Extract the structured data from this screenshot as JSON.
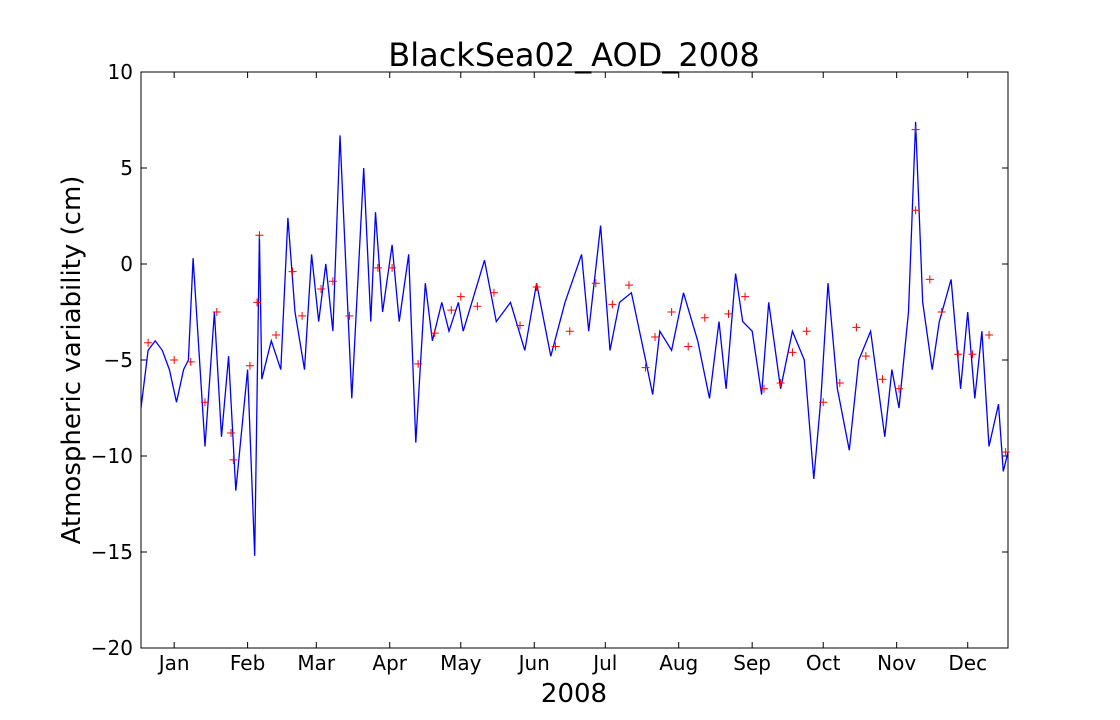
{
  "chart_data": {
    "type": "line",
    "title": "BlackSea02_AOD_2008",
    "x_label": "2008",
    "y_label": "Atmospheric variability (cm)",
    "xlim": [
      0,
      366
    ],
    "xticks": [
      {
        "value": 14,
        "label": "Jan"
      },
      {
        "value": 45,
        "label": "Feb"
      },
      {
        "value": 74,
        "label": "Mar"
      },
      {
        "value": 105,
        "label": "Apr"
      },
      {
        "value": 135,
        "label": "May"
      },
      {
        "value": 166,
        "label": "Jun"
      },
      {
        "value": 196,
        "label": "Jul"
      },
      {
        "value": 227,
        "label": "Aug"
      },
      {
        "value": 258,
        "label": "Sep"
      },
      {
        "value": 288,
        "label": "Oct"
      },
      {
        "value": 319,
        "label": "Nov"
      },
      {
        "value": 349,
        "label": "Dec"
      }
    ],
    "ylim": [
      -20,
      10
    ],
    "yticks": [
      {
        "value": -20,
        "label": "−20"
      },
      {
        "value": -15,
        "label": "−15"
      },
      {
        "value": -10,
        "label": "−10"
      },
      {
        "value": -5,
        "label": "−5"
      },
      0,
      5,
      10
    ],
    "series": [
      {
        "color": "#0000ff",
        "style": "line",
        "x": [
          0,
          3,
          6,
          9,
          12,
          15,
          18,
          20,
          22,
          27,
          31,
          34,
          37,
          40,
          45,
          48,
          50,
          51,
          55,
          59,
          62,
          65,
          69,
          72,
          75,
          78,
          81,
          84,
          89,
          94,
          97,
          99,
          102,
          106,
          109,
          113,
          116,
          120,
          123,
          127,
          130,
          134,
          136,
          145,
          150,
          156,
          162,
          167,
          173,
          179,
          186,
          189,
          194,
          198,
          202,
          207,
          213,
          216,
          219,
          224,
          229,
          235,
          240,
          244,
          247,
          251,
          254,
          258,
          262,
          265,
          270,
          275,
          280,
          284,
          287,
          290,
          294,
          299,
          303,
          308,
          314,
          317,
          320,
          324,
          327,
          330,
          334,
          337,
          342,
          346,
          349,
          352,
          355,
          358,
          362,
          364,
          366
        ],
        "values": [
          -7.5,
          -4.5,
          -4,
          -4.5,
          -5.5,
          -7.2,
          -5.5,
          -5,
          0.3,
          -9.5,
          -2.5,
          -9,
          -4.8,
          -11.8,
          -5.5,
          -15.2,
          1.5,
          -6,
          -4,
          -5.5,
          2.4,
          -2.5,
          -5.5,
          0.5,
          -3,
          0,
          -3.5,
          6.7,
          -7,
          5,
          -3,
          2.7,
          -2.5,
          1,
          -3,
          0.5,
          -9.3,
          -1,
          -4,
          -2,
          -3.5,
          -2,
          -3.5,
          0.2,
          -3,
          -2,
          -4.5,
          -1,
          -4.8,
          -2,
          0.5,
          -3.5,
          2,
          -4.5,
          -2,
          -1.5,
          -5,
          -6.8,
          -3.5,
          -4.5,
          -1.5,
          -4,
          -7,
          -3,
          -6.5,
          -0.5,
          -3,
          -3.5,
          -6.8,
          -2,
          -6.5,
          -3.5,
          -5,
          -11.2,
          -7,
          -1,
          -6.5,
          -9.7,
          -5,
          -3.5,
          -9,
          -5.5,
          -7.5,
          -2.5,
          7.4,
          -2,
          -5.5,
          -3,
          -0.8,
          -6.5,
          -2.5,
          -7,
          -3.5,
          -9.5,
          -7.3,
          -10.8,
          -9.8
        ]
      },
      {
        "color": "#ff0000",
        "style": "marker",
        "x": [
          3,
          14,
          21,
          27,
          32,
          38,
          39,
          46,
          49,
          50,
          57,
          64,
          68,
          76,
          81,
          88,
          100,
          106,
          117,
          124,
          131,
          135,
          142,
          149,
          160,
          167,
          175,
          181,
          192,
          199,
          206,
          213,
          217,
          224,
          231,
          238,
          248,
          255,
          263,
          270,
          275,
          281,
          288,
          295,
          302,
          306,
          313,
          320,
          327,
          327,
          333,
          338,
          345,
          351,
          358,
          365
        ],
        "values": [
          -4.1,
          -5,
          -5.1,
          -7.2,
          -2.5,
          -8.8,
          -10.2,
          -5.3,
          -2,
          1.5,
          -3.7,
          -0.4,
          -2.7,
          -1.3,
          -0.9,
          -2.7,
          -0.2,
          -0.2,
          -5.2,
          -3.6,
          -2.4,
          -1.7,
          -2.2,
          -1.5,
          -3.2,
          -1.2,
          -4.3,
          -3.5,
          -1,
          -2.1,
          -1.1,
          -5.4,
          -3.8,
          -2.5,
          -4.3,
          -2.8,
          -2.6,
          -1.7,
          -6.5,
          -6.2,
          -4.6,
          -3.5,
          -7.2,
          -6.2,
          -3.3,
          -4.8,
          -6,
          -6.5,
          7,
          2.8,
          -0.8,
          -2.5,
          -4.7,
          -4.7,
          -3.7,
          -9.8
        ]
      }
    ]
  }
}
